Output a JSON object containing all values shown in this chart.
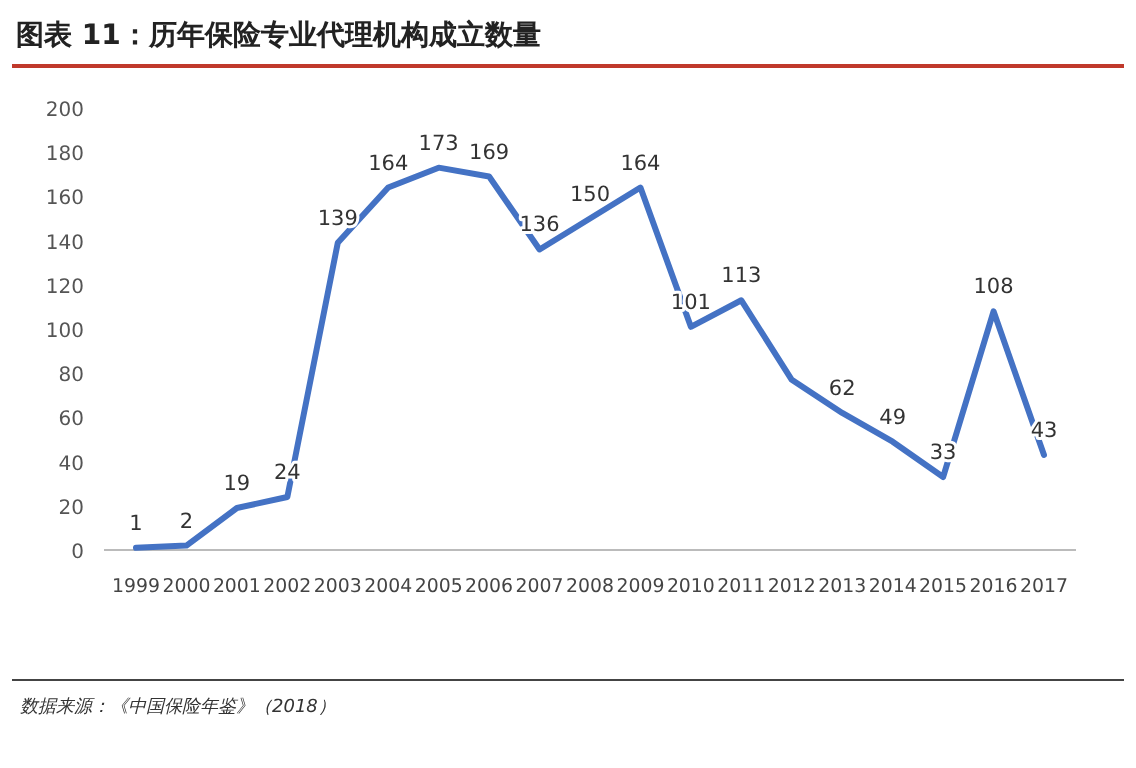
{
  "chart_data": {
    "type": "line",
    "title": "图表 11：历年保险专业代理机构成立数量",
    "categories": [
      "1999",
      "2000",
      "2001",
      "2002",
      "2003",
      "2004",
      "2005",
      "2006",
      "2007",
      "2008",
      "2009",
      "2010",
      "2011",
      "2012",
      "2013",
      "2014",
      "2015",
      "2016",
      "2017"
    ],
    "values": [
      1,
      2,
      19,
      24,
      139,
      164,
      173,
      169,
      136,
      150,
      164,
      101,
      113,
      77,
      62,
      49,
      33,
      108,
      43
    ],
    "value_labels": [
      "1",
      "2",
      "19",
      "24",
      "139",
      "164",
      "173",
      "169",
      "136",
      "150",
      "164",
      "101",
      "113",
      null,
      "62",
      "49",
      "33",
      "108",
      "43"
    ],
    "color": "#4472c4",
    "ylim": [
      0,
      200
    ],
    "yticks": [
      0,
      20,
      40,
      60,
      80,
      100,
      120,
      140,
      160,
      180,
      200
    ],
    "annotations": [
      "数据来源：《中国保险年鉴》（2018）"
    ]
  }
}
